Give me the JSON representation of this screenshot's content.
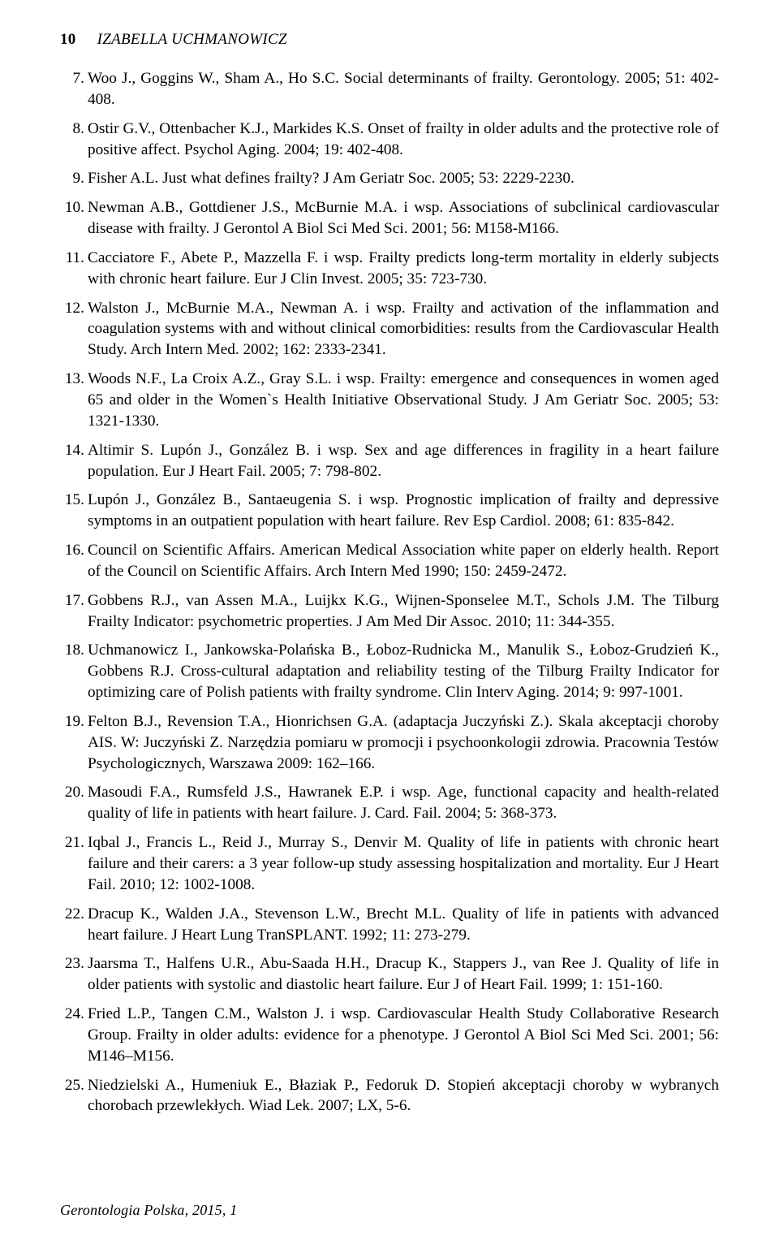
{
  "page_number": "10",
  "running_head": "IZABELLA UCHMANOWICZ",
  "footer": "Gerontologia Polska, 2015, 1",
  "references": [
    {
      "n": "7.",
      "text": "Woo J., Goggins W., Sham A., Ho S.C. Social determinants of frailty. Gerontology. 2005; 51: 402-408."
    },
    {
      "n": "8.",
      "text": "Ostir G.V., Ottenbacher K.J., Markides K.S. Onset of frailty in older adults and the protective role of positive affect. Psychol Aging. 2004; 19: 402-408."
    },
    {
      "n": "9.",
      "text": "Fisher A.L. Just what defines frailty? J Am Geriatr Soc. 2005; 53: 2229-2230."
    },
    {
      "n": "10.",
      "text": "Newman A.B., Gottdiener J.S., McBurnie M.A. i wsp. Associations of subclinical cardiovascular disease with frailty. J Gerontol A Biol Sci Med Sci. 2001; 56: M158-M166."
    },
    {
      "n": "11.",
      "text": "Cacciatore F., Abete P., Mazzella F. i wsp. Frailty predicts long-term mortality in elderly subjects with chronic heart failure. Eur J Clin Invest. 2005; 35: 723-730."
    },
    {
      "n": "12.",
      "text": "Walston J., McBurnie M.A., Newman A. i wsp. Frailty and activation of the inflammation and coagulation systems with and without clinical comorbidities: results from the Cardiovascular Health Study. Arch Intern Med. 2002; 162: 2333-2341."
    },
    {
      "n": "13.",
      "text": "Woods N.F., La Croix A.Z., Gray S.L. i wsp. Frailty: emergence and consequences in women aged 65 and older in the Women`s Health Initiative Observational Study. J Am Geriatr Soc. 2005; 53: 1321-1330."
    },
    {
      "n": "14.",
      "text": "Altimir S. Lupón J., González B. i wsp. Sex and age differences in fragility in a heart failure population. Eur J Heart Fail. 2005; 7: 798-802."
    },
    {
      "n": "15.",
      "text": "Lupón J., González B., Santaeugenia S. i wsp. Prognostic implication of frailty and depressive symptoms in an outpatient population with heart failure. Rev Esp Cardiol. 2008; 61: 835-842."
    },
    {
      "n": "16.",
      "text": "Council on Scientific Affairs. American Medical Association white paper on elderly health. Report of the Council on Scientific Affairs. Arch Intern Med 1990; 150: 2459-2472."
    },
    {
      "n": "17.",
      "text": "Gobbens R.J., van Assen M.A., Luijkx K.G., Wijnen-Sponselee M.T., Schols J.M. The Tilburg Frailty Indicator: psychometric properties. J Am Med Dir Assoc. 2010; 11: 344-355."
    },
    {
      "n": "18.",
      "text": "Uchmanowicz I., Jankowska-Polańska B., Łoboz-Rudnicka M., Manulik S., Łoboz-Grudzień K., Gobbens R.J. Cross-cultural adaptation and reliability testing of the Tilburg Frailty Indicator for optimizing care of Polish patients with frailty syndrome. Clin Interv Aging. 2014; 9: 997-1001."
    },
    {
      "n": "19.",
      "text": "Felton B.J., Revension T.A., Hionrichsen G.A. (adaptacja Juczyński Z.). Skala akceptacji choroby AIS. W: Juczyński Z. Narzędzia pomiaru w promocji i psychoonkologii zdrowia. Pracownia Testów Psychologicznych, Warszawa 2009: 162–166."
    },
    {
      "n": "20.",
      "text": "Masoudi F.A., Rumsfeld J.S., Hawranek E.P. i wsp. Age, functional capacity and health-related quality of life in patients with heart failure. J. Card. Fail. 2004; 5: 368-373."
    },
    {
      "n": "21.",
      "text": "Iqbal J., Francis L., Reid J., Murray S., Denvir M. Quality of life in patients with chronic heart failure and their carers: a 3 year follow-up study assessing hospitalization and mortality. Eur J Heart Fail. 2010; 12: 1002-1008."
    },
    {
      "n": "22.",
      "text": "Dracup K., Walden J.A., Stevenson L.W., Brecht M.L. Quality of life in patients with advanced heart failure. J Heart Lung TranSPLANT. 1992; 11: 273-279."
    },
    {
      "n": "23.",
      "text": "Jaarsma T., Halfens U.R., Abu-Saada H.H., Dracup K., Stappers J., van Ree J. Quality of life in older patients with systolic and diastolic heart failure. Eur J of Heart Fail. 1999; 1: 151-160."
    },
    {
      "n": "24.",
      "text": "Fried L.P., Tangen C.M., Walston J. i wsp. Cardiovascular Health Study Collaborative Research Group. Frailty in older adults: evidence for a phenotype. J Gerontol A Biol Sci Med Sci. 2001; 56: M146–M156."
    },
    {
      "n": "25.",
      "text": "Niedzielski A., Humeniuk E., Błaziak P., Fedoruk D. Stopień akceptacji choroby w wybranych chorobach przewlekłych. Wiad Lek. 2007; LX, 5-6."
    }
  ]
}
